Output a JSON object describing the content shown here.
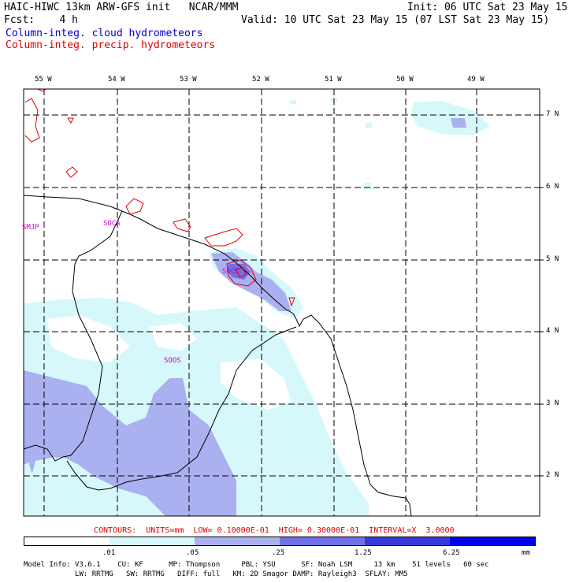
{
  "header": {
    "line1_left": "HAIC-HIWC 13km ARW-GFS init   NCAR/MMM",
    "line1_right": "Init: 06 UTC Sat 23 May 15",
    "line2_left": "Fcst:    4 h",
    "line2_right": "Valid: 10 UTC Sat 23 May 15 (07 LST Sat 23 May 15)",
    "legend1": "Column-integ. cloud hydrometeors",
    "legend2": "Column-integ. precip. hydrometeors"
  },
  "axes": {
    "lon_labels": [
      "55 W",
      "54 W",
      "53 W",
      "52 W",
      "51 W",
      "50 W",
      "49 W"
    ],
    "lat_labels": [
      "7 N",
      "6 N",
      "5 N",
      "4 N",
      "3 N",
      "2 N"
    ]
  },
  "stations": [
    "SMJP",
    "SOCA",
    "SOCA",
    "SOOS"
  ],
  "contour_info": "CONTOURS:  UNITS=mm  LOW= 0.10000E-01  HIGH= 0.30000E-01  INTERVAL=X  3.0000",
  "colorbar": {
    "labels": [
      ".01",
      ".05",
      ".25",
      "1.25",
      "6.25",
      "mm"
    ],
    "colors": [
      "#ffffff",
      "#d6f8fb",
      "#aab0f0",
      "#7070e8",
      "#3a3adc",
      "#0000f0"
    ]
  },
  "footer": {
    "line1": "Model Info: V3.6.1    CU: KF      MP: Thompson     PBL: YSU      SF: Noah LSM     13 km    51 levels   60 sec",
    "line2": "            LW: RRTMG   SW: RRTMG   DIFF: full   KM: 2D Smagor DAMP: Rayleigh3  SFLAY: MM5"
  },
  "colors": {
    "cloud_light": "#d6f8fb",
    "cloud_mid": "#aab0f0",
    "cloud_dark": "#7070e8",
    "precip_contour": "#dd0000",
    "station": "#cc00cc"
  }
}
